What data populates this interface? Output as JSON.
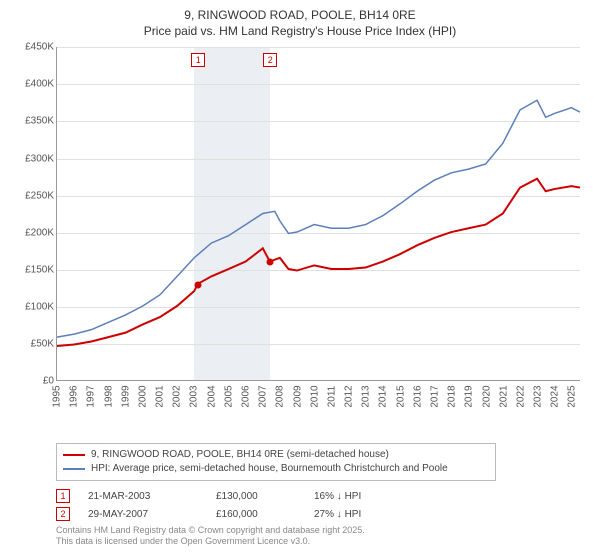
{
  "title_line1": "9, RINGWOOD ROAD, POOLE, BH14 0RE",
  "title_line2": "Price paid vs. HM Land Registry's House Price Index (HPI)",
  "chart": {
    "type": "line",
    "x_start_year": 1995,
    "x_end_year": 2025.5,
    "ylim": [
      0,
      450000
    ],
    "ytick_step": 50000,
    "ytick_labels": [
      "£0",
      "£50K",
      "£100K",
      "£150K",
      "£200K",
      "£250K",
      "£300K",
      "£350K",
      "£400K",
      "£450K"
    ],
    "xtick_years": [
      1995,
      1996,
      1997,
      1998,
      1999,
      2000,
      2001,
      2002,
      2003,
      2004,
      2005,
      2006,
      2007,
      2008,
      2009,
      2010,
      2011,
      2012,
      2013,
      2014,
      2015,
      2016,
      2017,
      2018,
      2019,
      2020,
      2021,
      2022,
      2023,
      2024,
      2025
    ],
    "grid_color": "#e0e0e0",
    "background_color": "#ffffff",
    "shaded_band": {
      "start_year": 2003,
      "end_year": 2007.4,
      "color": "#e8ecf2"
    },
    "series_subject": {
      "label": "9, RINGWOOD ROAD, POOLE, BH14 0RE (semi-detached house)",
      "color": "#cc0000",
      "line_width": 2,
      "points_year": [
        1995,
        1996,
        1997,
        1998,
        1999,
        2000,
        2001,
        2002,
        2003,
        2003.22,
        2004,
        2005,
        2006,
        2007,
        2007.41,
        2008,
        2008.5,
        2009,
        2010,
        2011,
        2012,
        2013,
        2014,
        2015,
        2016,
        2017,
        2018,
        2019,
        2020,
        2021,
        2022,
        2023,
        2023.5,
        2024,
        2025,
        2025.5
      ],
      "points_value": [
        46000,
        48000,
        52000,
        58000,
        64000,
        75000,
        85000,
        100000,
        120000,
        130000,
        140000,
        150000,
        160000,
        178000,
        160000,
        165000,
        150000,
        148000,
        155000,
        150000,
        150000,
        152000,
        160000,
        170000,
        182000,
        192000,
        200000,
        205000,
        210000,
        225000,
        260000,
        272000,
        255000,
        258000,
        262000,
        260000
      ]
    },
    "series_hpi": {
      "label": "HPI: Average price, semi-detached house, Bournemouth Christchurch and Poole",
      "color": "#5b7fb8",
      "line_width": 1.5,
      "points_year": [
        1995,
        1996,
        1997,
        1998,
        1999,
        2000,
        2001,
        2002,
        2003,
        2004,
        2005,
        2006,
        2007,
        2007.7,
        2008,
        2008.5,
        2009,
        2010,
        2011,
        2012,
        2013,
        2014,
        2015,
        2016,
        2017,
        2018,
        2019,
        2020,
        2021,
        2022,
        2023,
        2023.5,
        2024,
        2025,
        2025.5
      ],
      "points_value": [
        58000,
        62000,
        68000,
        78000,
        88000,
        100000,
        115000,
        140000,
        165000,
        185000,
        195000,
        210000,
        225000,
        228000,
        215000,
        198000,
        200000,
        210000,
        205000,
        205000,
        210000,
        222000,
        238000,
        255000,
        270000,
        280000,
        285000,
        292000,
        320000,
        365000,
        378000,
        355000,
        360000,
        368000,
        362000
      ]
    },
    "sale_markers": [
      {
        "n": "1",
        "year": 2003.22,
        "value": 130000
      },
      {
        "n": "2",
        "year": 2007.41,
        "value": 160000
      }
    ]
  },
  "legend": {
    "subject_color": "#cc0000",
    "hpi_color": "#5b7fb8"
  },
  "sales": [
    {
      "n": "1",
      "date": "21-MAR-2003",
      "price": "£130,000",
      "diff": "16% ↓ HPI"
    },
    {
      "n": "2",
      "date": "29-MAY-2007",
      "price": "£160,000",
      "diff": "27% ↓ HPI"
    }
  ],
  "footer_line1": "Contains HM Land Registry data © Crown copyright and database right 2025.",
  "footer_line2": "This data is licensed under the Open Government Licence v3.0."
}
